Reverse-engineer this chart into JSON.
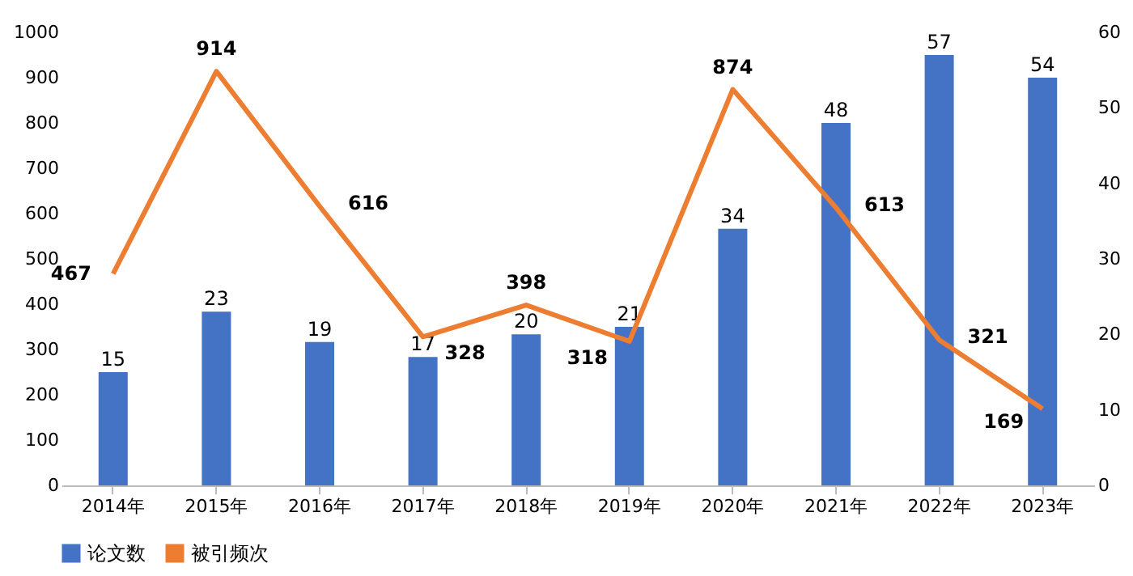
{
  "chart_data": {
    "type": "bar",
    "categories": [
      "2014年",
      "2015年",
      "2016年",
      "2017年",
      "2018年",
      "2019年",
      "2020年",
      "2021年",
      "2022年",
      "2023年"
    ],
    "series": [
      {
        "name": "论文数",
        "axis": "y2",
        "color": "#4472c4",
        "values": [
          15,
          23,
          19,
          17,
          20,
          21,
          34,
          48,
          57,
          54
        ]
      },
      {
        "name": "被引频次",
        "type": "line",
        "color": "#ed7d31",
        "values": [
          467,
          914,
          616,
          328,
          398,
          318,
          874,
          613,
          321,
          169
        ]
      }
    ],
    "ylim": [
      0,
      1000
    ],
    "yticks": [
      0,
      100,
      200,
      300,
      400,
      500,
      600,
      700,
      800,
      900,
      {
        "value": 1000,
        "label": "1000"
      }
    ],
    "y2lim": [
      0,
      60
    ],
    "y2ticks": [
      0,
      10,
      20,
      30,
      40,
      50,
      60
    ],
    "data_labels": true,
    "legend": "bottom",
    "grid": false,
    "marker": "none",
    "line_style": "solid"
  }
}
